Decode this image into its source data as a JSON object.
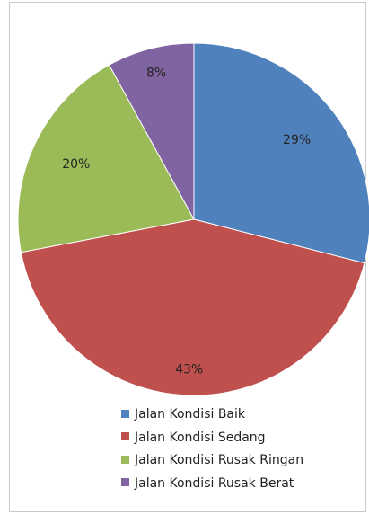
{
  "chart_data": {
    "type": "pie",
    "title": "",
    "start_angle_deg": 0,
    "direction": "clockwise",
    "slices": [
      {
        "label": "Jalan Kondisi Baik",
        "value": 29,
        "display": "29%",
        "color": "#4f81bd"
      },
      {
        "label": "Jalan Kondisi Sedang",
        "value": 43,
        "display": "43%",
        "color": "#c0504d"
      },
      {
        "label": "Jalan Kondisi Rusak Ringan",
        "value": 20,
        "display": "20%",
        "color": "#9bbb59"
      },
      {
        "label": "Jalan Kondisi Rusak Berat",
        "value": 8,
        "display": "8%",
        "color": "#8064a2"
      }
    ],
    "legend_position": "bottom"
  }
}
